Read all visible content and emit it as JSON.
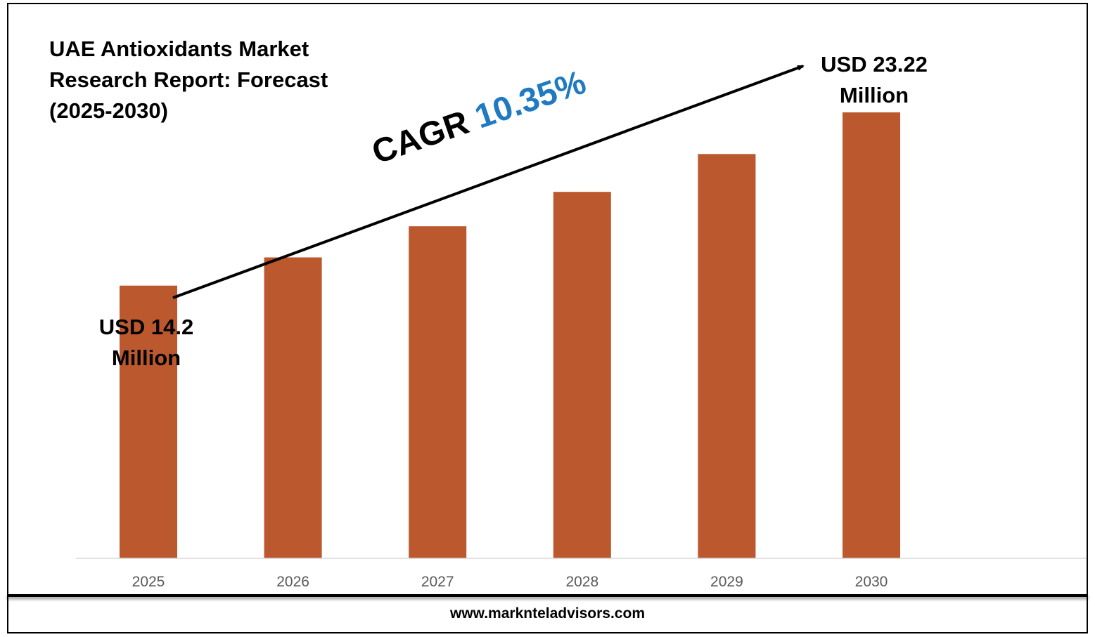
{
  "footer": {
    "website": "www.marknteladvisors.com"
  },
  "annotations": {
    "cagr_prefix": "CAGR",
    "cagr_value": "10.35%",
    "start_line1": "USD 14.2",
    "start_line2": "Million",
    "end_line1": "USD 23.22",
    "end_line2": "Million"
  },
  "colors": {
    "bar": "#bc582d",
    "cagr_value": "#1f7ac2",
    "axis": "#d9d9d9",
    "tick_text": "#595959"
  },
  "chart_data": {
    "type": "bar",
    "title": "UAE Antioxidants Market Research Report: Forecast (2025-2030)",
    "categories": [
      "2025",
      "2026",
      "2027",
      "2028",
      "2029",
      "2030"
    ],
    "values": [
      14.2,
      15.67,
      17.29,
      19.08,
      21.05,
      23.22
    ],
    "xlabel": "",
    "ylabel": "",
    "ylim": [
      0,
      25
    ],
    "grid": false,
    "legend": "none"
  }
}
